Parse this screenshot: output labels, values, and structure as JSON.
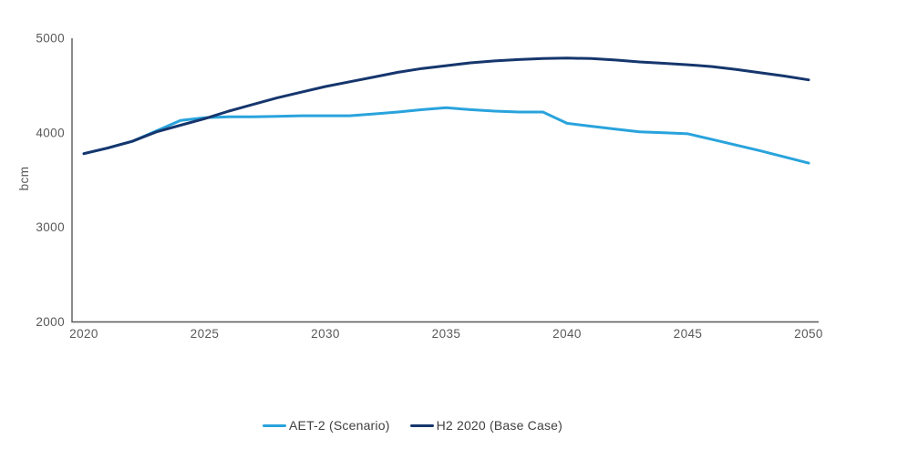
{
  "chart_data": {
    "type": "line",
    "title": "",
    "xlabel": "",
    "ylabel": "bcm",
    "xlim": [
      2020,
      2050
    ],
    "ylim": [
      2000,
      5000
    ],
    "x_ticks": [
      2020,
      2025,
      2030,
      2035,
      2040,
      2045,
      2050
    ],
    "y_ticks": [
      2000,
      3000,
      4000,
      5000
    ],
    "grid": false,
    "legend_position": "bottom-center",
    "x": [
      2020,
      2021,
      2022,
      2023,
      2024,
      2025,
      2026,
      2027,
      2028,
      2029,
      2030,
      2031,
      2032,
      2033,
      2034,
      2035,
      2036,
      2037,
      2038,
      2039,
      2040,
      2041,
      2042,
      2043,
      2044,
      2045,
      2046,
      2047,
      2048,
      2049,
      2050
    ],
    "series": [
      {
        "name": "AET-2 (Scenario)",
        "color": "#29A3DC",
        "values": [
          3780,
          3840,
          3910,
          4020,
          4130,
          4160,
          4170,
          4170,
          4175,
          4180,
          4180,
          4180,
          4200,
          4220,
          4245,
          4265,
          4245,
          4230,
          4220,
          4220,
          4100,
          4070,
          4040,
          4010,
          4000,
          3990,
          3930,
          3870,
          3810,
          3745,
          3680
        ]
      },
      {
        "name": "H2 2020 (Base Case)",
        "color": "#16366D",
        "values": [
          3780,
          3840,
          3910,
          4010,
          4080,
          4150,
          4230,
          4300,
          4370,
          4430,
          4490,
          4540,
          4590,
          4640,
          4680,
          4710,
          4740,
          4760,
          4775,
          4785,
          4790,
          4785,
          4770,
          4750,
          4735,
          4720,
          4700,
          4670,
          4635,
          4600,
          4560
        ]
      }
    ]
  },
  "legend": {
    "items": [
      {
        "label": "AET-2 (Scenario)",
        "color": "#29A3DC"
      },
      {
        "label": "H2 2020 (Base Case)",
        "color": "#16366D"
      }
    ]
  },
  "colors": {
    "background": "#FFFFFF",
    "axis": "#595959",
    "tick_text": "#595959",
    "axis_label_text": "#595959",
    "legend_text": "#404040"
  }
}
